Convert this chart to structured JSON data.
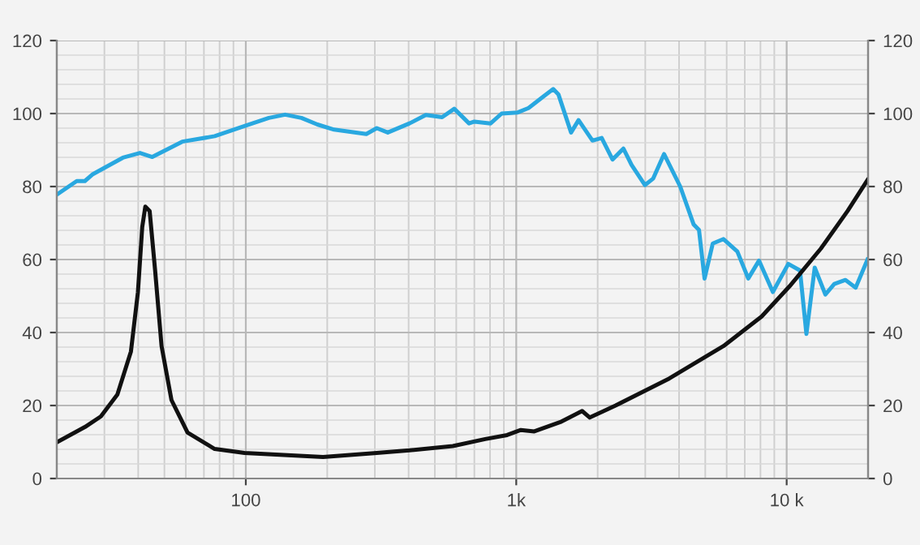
{
  "chart_data": {
    "type": "line",
    "log": "x",
    "grid": true,
    "legend": false,
    "marker": "none",
    "line_style": "solid",
    "xlim": [
      20,
      20000
    ],
    "xticks": [
      100,
      {
        "value": 1000,
        "label": "1k"
      },
      {
        "value": 10000,
        "label": "10 k"
      }
    ],
    "ylim": [
      0,
      120
    ],
    "yticks": [
      0,
      20,
      40,
      60,
      80,
      100,
      120
    ],
    "y2lim": [
      0,
      120
    ],
    "y2ticks": [
      0,
      20,
      40,
      60,
      80,
      100,
      120
    ],
    "series": [
      {
        "color": "#29a8e0",
        "x": [
          20,
          23.7,
          25.4,
          27.2,
          35.1,
          40.6,
          45.1,
          58.2,
          76.7,
          98.9,
          121.7,
          139.7,
          160.5,
          184,
          212,
          279,
          305,
          335,
          403,
          463,
          532,
          590,
          669,
          700,
          804,
          883,
          1013,
          1110,
          1246,
          1370,
          1433,
          1595,
          1700,
          1914,
          2070,
          2270,
          2490,
          2670,
          2990,
          3210,
          3520,
          4040,
          4530,
          4740,
          4970,
          5330,
          5840,
          6570,
          7210,
          7900,
          8890,
          10140,
          11200,
          11830,
          12700,
          13900,
          15000,
          16500,
          18000,
          19900
        ],
        "values": [
          77.8,
          81.5,
          81.5,
          83.4,
          87.9,
          89.2,
          88.1,
          92.3,
          93.8,
          96.6,
          98.8,
          99.7,
          98.8,
          97,
          95.6,
          94.4,
          96,
          94.8,
          97.3,
          99.6,
          99,
          101.3,
          97.3,
          97.8,
          97.3,
          100,
          100.3,
          101.5,
          104.4,
          106.7,
          105.2,
          94.8,
          98.2,
          92.6,
          93.3,
          87.4,
          90.4,
          85.9,
          80.4,
          82.2,
          88.9,
          80,
          69.6,
          68.1,
          54.8,
          64.4,
          65.6,
          62.2,
          54.8,
          59.7,
          51.1,
          58.8,
          57,
          39.6,
          57.8,
          50.4,
          53.3,
          54.4,
          52.3,
          60
        ]
      },
      {
        "color": "#111111",
        "x": [
          20,
          25.4,
          29.1,
          33.5,
          37.6,
          39.9,
          41.4,
          42.5,
          44.1,
          46.2,
          48.8,
          53.1,
          60.9,
          76.7,
          98.9,
          193,
          305,
          403,
          583,
          768,
          925,
          1040,
          1166,
          1470,
          1752,
          1870,
          2330,
          3680,
          5840,
          8080,
          10230,
          13380,
          16800,
          19900
        ],
        "values": [
          9.9,
          14.1,
          17,
          23,
          34.8,
          51,
          68.9,
          74.5,
          73.3,
          57,
          36.3,
          21.5,
          12.6,
          8.1,
          7,
          5.9,
          7,
          7.7,
          8.9,
          10.8,
          11.9,
          13.3,
          12.9,
          15.6,
          18.5,
          16.7,
          20,
          27.4,
          36.3,
          44.4,
          52.6,
          63,
          73.3,
          81.8
        ]
      }
    ]
  }
}
